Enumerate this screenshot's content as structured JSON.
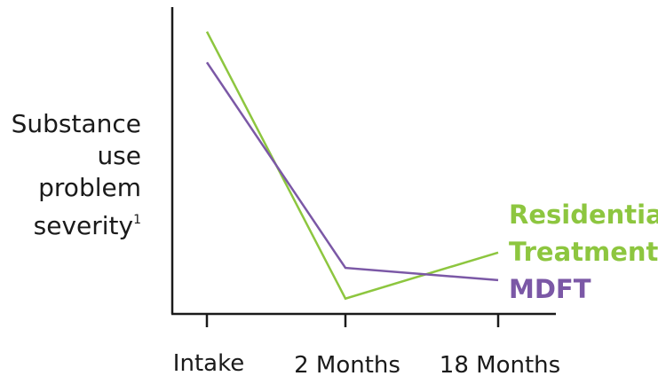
{
  "chart_data": {
    "type": "line",
    "title": "",
    "ylabel_lines": [
      "Substance",
      "use",
      "problem",
      "severity"
    ],
    "ylabel_superscript": "1",
    "xlabel": "",
    "categories": [
      "Intake",
      "2 Months",
      "18 Months"
    ],
    "series": [
      {
        "name_lines": [
          "Residential",
          "Treatment"
        ],
        "color": "#8dc63f",
        "values": [
          92,
          5,
          20
        ]
      },
      {
        "name": "MDFT",
        "color": "#7b58a6",
        "values": [
          82,
          15,
          11
        ]
      }
    ],
    "ylim": [
      0,
      100
    ],
    "grid": false,
    "legend": "right"
  }
}
